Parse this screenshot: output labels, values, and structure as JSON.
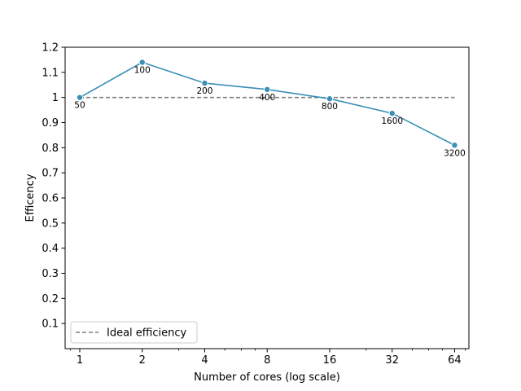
{
  "chart_data": {
    "type": "line",
    "title": "",
    "xlabel": "Number of cores (log scale)",
    "ylabel": "Efficency",
    "x_scale": "log2",
    "xlim": [
      0.85,
      75
    ],
    "ylim": [
      0.0,
      1.2
    ],
    "x_ticks": [
      1,
      2,
      4,
      8,
      16,
      32,
      64
    ],
    "x_tick_labels": [
      "1",
      "2",
      "4",
      "8",
      "16",
      "32",
      "64"
    ],
    "y_ticks": [
      0.1,
      0.2,
      0.3,
      0.4,
      0.5,
      0.6,
      0.7,
      0.8,
      0.9,
      1.0,
      1.1,
      1.2
    ],
    "y_tick_labels": [
      "0.1",
      "0.2",
      "0.3",
      "0.4",
      "0.5",
      "0.6",
      "0.7",
      "0.8",
      "0.9",
      "1",
      "1.1",
      "1.2"
    ],
    "grid": false,
    "legend_position": "lower-left",
    "series": [
      {
        "name": "",
        "color": "#3a8fb5",
        "style": "solid",
        "marker": "circle",
        "x": [
          1,
          2,
          4,
          8,
          16,
          32,
          64
        ],
        "y": [
          1.0,
          1.14,
          1.057,
          1.032,
          0.995,
          0.937,
          0.81
        ],
        "point_labels": [
          "50",
          "100",
          "200",
          "400",
          "800",
          "1600",
          "3200"
        ]
      },
      {
        "name": "Ideal efficiency",
        "color": "#7f7f7f",
        "style": "dashed",
        "x": [
          1,
          64
        ],
        "y": [
          1.0,
          1.0
        ]
      }
    ]
  }
}
